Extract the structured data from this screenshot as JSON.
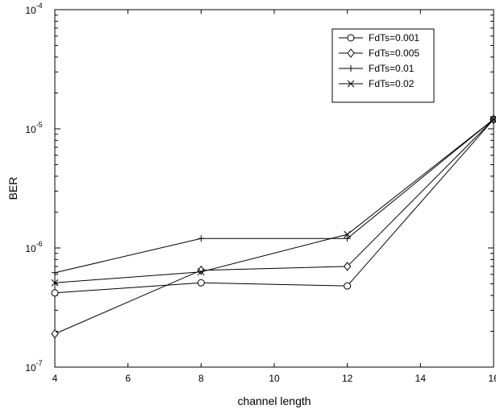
{
  "chart_data": {
    "type": "line",
    "xlabel": "channel length",
    "ylabel": "BER",
    "xlim": [
      4,
      16
    ],
    "ylim": [
      1e-07,
      0.0001
    ],
    "yscale": "log",
    "grid": false,
    "legend_position": "top-right",
    "x_ticks": [
      "4",
      "6",
      "8",
      "10",
      "12",
      "14",
      "16"
    ],
    "y_ticks": [
      {
        "base": "10",
        "exp": "-7"
      },
      {
        "base": "10",
        "exp": "-6"
      },
      {
        "base": "10",
        "exp": "-5"
      },
      {
        "base": "10",
        "exp": "-4"
      }
    ],
    "x": [
      4,
      8,
      12,
      16
    ],
    "series": [
      {
        "name": "FdTs=0.001",
        "marker": "circle",
        "values": [
          4.2e-07,
          5.1e-07,
          4.8e-07,
          1.2e-05
        ]
      },
      {
        "name": "FdTs=0.005",
        "marker": "diamond",
        "values": [
          1.9e-07,
          6.5e-07,
          7e-07,
          1.2e-05
        ]
      },
      {
        "name": "FdTs=0.01",
        "marker": "plus",
        "values": [
          6.2e-07,
          1.2e-06,
          1.2e-06,
          1.2e-05
        ]
      },
      {
        "name": "FdTs=0.02",
        "marker": "cross",
        "values": [
          5.1e-07,
          6.3e-07,
          1.3e-06,
          1.2e-05
        ]
      }
    ]
  }
}
